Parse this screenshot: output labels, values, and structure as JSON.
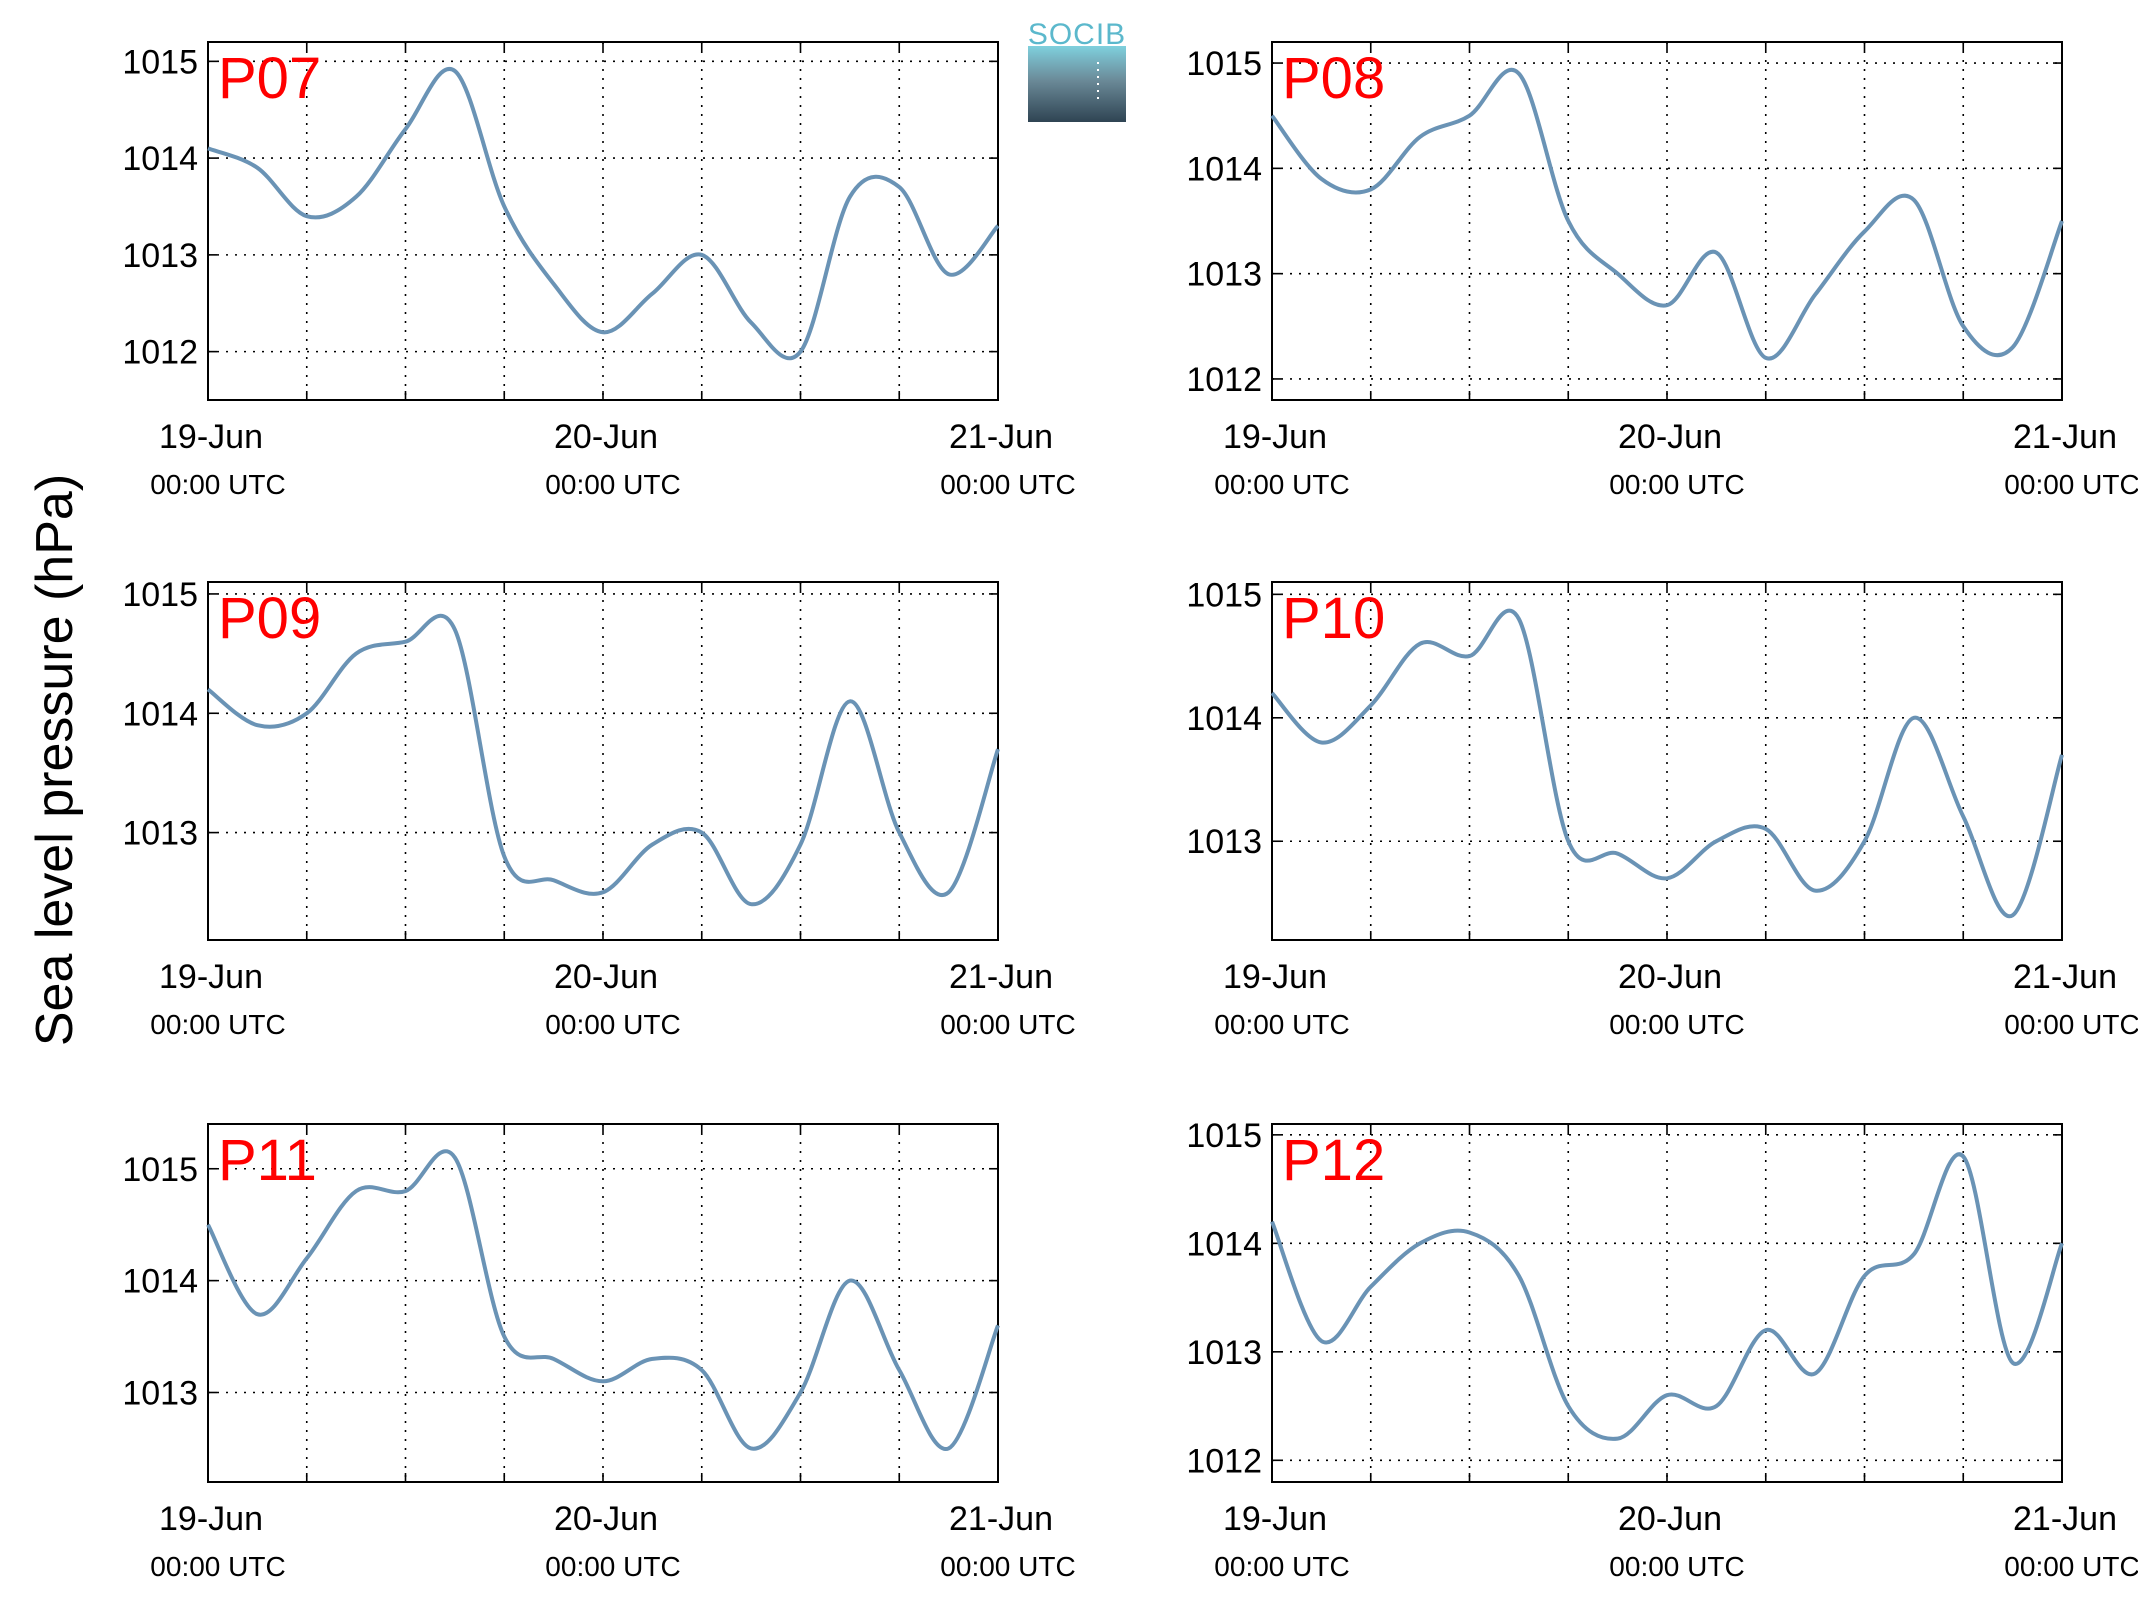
{
  "figure": {
    "ylabel": "Sea level pressure (hPa)",
    "logo_text": "SOCIB",
    "line_color": "#6a93b5",
    "title_color": "#ff0000",
    "x_tick_dates": [
      "19-Jun",
      "20-Jun",
      "21-Jun"
    ],
    "x_tick_times": [
      "00:00 UTC",
      "00:00 UTC",
      "00:00 UTC"
    ]
  },
  "chart_data": [
    {
      "type": "line",
      "title": "P07",
      "xlabel": "",
      "ylabel": "Sea level pressure (hPa)",
      "xlim": [
        "2019-06-19 00:00",
        "2019-06-21 00:00"
      ],
      "ylim": [
        1011.5,
        1015.2
      ],
      "yticks": [
        1012,
        1013,
        1014,
        1015
      ],
      "grid": true,
      "x": [
        "19-Jun 00:00",
        "19-Jun 03:00",
        "19-Jun 06:00",
        "19-Jun 09:00",
        "19-Jun 12:00",
        "19-Jun 15:00",
        "19-Jun 18:00",
        "19-Jun 21:00",
        "20-Jun 00:00",
        "20-Jun 03:00",
        "20-Jun 06:00",
        "20-Jun 09:00",
        "20-Jun 12:00",
        "20-Jun 15:00",
        "20-Jun 18:00",
        "20-Jun 21:00",
        "21-Jun 00:00"
      ],
      "series": [
        {
          "values": [
            1014.1,
            1013.9,
            1013.4,
            1013.6,
            1014.3,
            1014.9,
            1013.5,
            1012.7,
            1012.2,
            1012.6,
            1013.0,
            1012.3,
            1012.0,
            1013.6,
            1013.7,
            1012.8,
            1013.3
          ]
        }
      ]
    },
    {
      "type": "line",
      "title": "P08",
      "xlabel": "",
      "ylabel": "",
      "xlim": [
        "2019-06-19 00:00",
        "2019-06-21 00:00"
      ],
      "ylim": [
        1011.8,
        1015.2
      ],
      "yticks": [
        1012,
        1013,
        1014,
        1015
      ],
      "grid": true,
      "x": [
        "19-Jun 00:00",
        "19-Jun 03:00",
        "19-Jun 06:00",
        "19-Jun 09:00",
        "19-Jun 12:00",
        "19-Jun 15:00",
        "19-Jun 18:00",
        "19-Jun 21:00",
        "20-Jun 00:00",
        "20-Jun 03:00",
        "20-Jun 06:00",
        "20-Jun 09:00",
        "20-Jun 12:00",
        "20-Jun 15:00",
        "20-Jun 18:00",
        "20-Jun 21:00",
        "21-Jun 00:00"
      ],
      "series": [
        {
          "values": [
            1014.5,
            1013.9,
            1013.8,
            1014.3,
            1014.5,
            1014.9,
            1013.5,
            1013.0,
            1012.7,
            1013.2,
            1012.2,
            1012.8,
            1013.4,
            1013.7,
            1012.5,
            1012.3,
            1013.5
          ]
        }
      ]
    },
    {
      "type": "line",
      "title": "P09",
      "xlabel": "",
      "ylabel": "",
      "xlim": [
        "2019-06-19 00:00",
        "2019-06-21 00:00"
      ],
      "ylim": [
        1012.1,
        1015.1
      ],
      "yticks": [
        1013,
        1014,
        1015
      ],
      "grid": true,
      "x": [
        "19-Jun 00:00",
        "19-Jun 03:00",
        "19-Jun 06:00",
        "19-Jun 09:00",
        "19-Jun 12:00",
        "19-Jun 15:00",
        "19-Jun 18:00",
        "19-Jun 21:00",
        "20-Jun 00:00",
        "20-Jun 03:00",
        "20-Jun 06:00",
        "20-Jun 09:00",
        "20-Jun 12:00",
        "20-Jun 15:00",
        "20-Jun 18:00",
        "20-Jun 21:00",
        "21-Jun 00:00"
      ],
      "series": [
        {
          "values": [
            1014.2,
            1013.9,
            1014.0,
            1014.5,
            1014.6,
            1014.7,
            1012.8,
            1012.6,
            1012.5,
            1012.9,
            1013.0,
            1012.4,
            1012.9,
            1014.1,
            1013.0,
            1012.5,
            1013.7
          ]
        }
      ]
    },
    {
      "type": "line",
      "title": "P10",
      "xlabel": "",
      "ylabel": "",
      "xlim": [
        "2019-06-19 00:00",
        "2019-06-21 00:00"
      ],
      "ylim": [
        1012.2,
        1015.1
      ],
      "yticks": [
        1013,
        1014,
        1015
      ],
      "grid": true,
      "x": [
        "19-Jun 00:00",
        "19-Jun 03:00",
        "19-Jun 06:00",
        "19-Jun 09:00",
        "19-Jun 12:00",
        "19-Jun 15:00",
        "19-Jun 18:00",
        "19-Jun 21:00",
        "20-Jun 00:00",
        "20-Jun 03:00",
        "20-Jun 06:00",
        "20-Jun 09:00",
        "20-Jun 12:00",
        "20-Jun 15:00",
        "20-Jun 18:00",
        "20-Jun 21:00",
        "21-Jun 00:00"
      ],
      "series": [
        {
          "values": [
            1014.2,
            1013.8,
            1014.1,
            1014.6,
            1014.5,
            1014.8,
            1013.0,
            1012.9,
            1012.7,
            1013.0,
            1013.1,
            1012.6,
            1013.0,
            1014.0,
            1013.2,
            1012.4,
            1013.7
          ]
        }
      ]
    },
    {
      "type": "line",
      "title": "P11",
      "xlabel": "",
      "ylabel": "",
      "xlim": [
        "2019-06-19 00:00",
        "2019-06-21 00:00"
      ],
      "ylim": [
        1012.2,
        1015.4
      ],
      "yticks": [
        1013,
        1014,
        1015
      ],
      "grid": true,
      "x": [
        "19-Jun 00:00",
        "19-Jun 03:00",
        "19-Jun 06:00",
        "19-Jun 09:00",
        "19-Jun 12:00",
        "19-Jun 15:00",
        "19-Jun 18:00",
        "19-Jun 21:00",
        "20-Jun 00:00",
        "20-Jun 03:00",
        "20-Jun 06:00",
        "20-Jun 09:00",
        "20-Jun 12:00",
        "20-Jun 15:00",
        "20-Jun 18:00",
        "20-Jun 21:00",
        "21-Jun 00:00"
      ],
      "series": [
        {
          "values": [
            1014.5,
            1013.7,
            1014.2,
            1014.8,
            1014.8,
            1015.1,
            1013.5,
            1013.3,
            1013.1,
            1013.3,
            1013.2,
            1012.5,
            1013.0,
            1014.0,
            1013.2,
            1012.5,
            1013.6
          ]
        }
      ]
    },
    {
      "type": "line",
      "title": "P12",
      "xlabel": "",
      "ylabel": "",
      "xlim": [
        "2019-06-19 00:00",
        "2019-06-21 00:00"
      ],
      "ylim": [
        1011.8,
        1015.1
      ],
      "yticks": [
        1012,
        1013,
        1014,
        1015
      ],
      "grid": true,
      "x": [
        "19-Jun 00:00",
        "19-Jun 03:00",
        "19-Jun 06:00",
        "19-Jun 09:00",
        "19-Jun 12:00",
        "19-Jun 15:00",
        "19-Jun 18:00",
        "19-Jun 21:00",
        "20-Jun 00:00",
        "20-Jun 03:00",
        "20-Jun 06:00",
        "20-Jun 09:00",
        "20-Jun 12:00",
        "20-Jun 15:00",
        "20-Jun 18:00",
        "20-Jun 21:00",
        "21-Jun 00:00"
      ],
      "series": [
        {
          "values": [
            1014.2,
            1013.1,
            1013.6,
            1014.0,
            1014.1,
            1013.7,
            1012.5,
            1012.2,
            1012.6,
            1012.5,
            1013.2,
            1012.8,
            1013.7,
            1013.9,
            1014.8,
            1012.9,
            1014.0
          ]
        }
      ]
    }
  ]
}
